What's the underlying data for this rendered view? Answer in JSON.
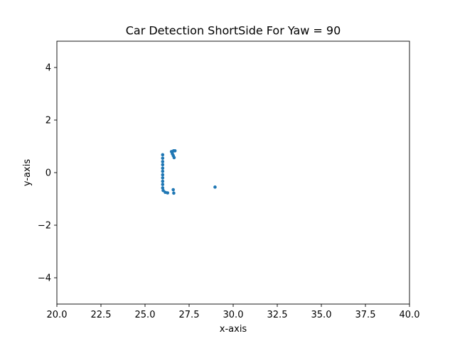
{
  "chart_data": {
    "type": "scatter",
    "title": "Car Detection ShortSide For Yaw = 90",
    "xlabel": "x-axis",
    "ylabel": "y-axis",
    "xlim": [
      20,
      40
    ],
    "ylim": [
      -5,
      5
    ],
    "xticks": [
      20.0,
      22.5,
      25.0,
      27.5,
      30.0,
      32.5,
      35.0,
      37.5,
      40.0
    ],
    "xtick_labels": [
      "20.0",
      "22.5",
      "25.0",
      "27.5",
      "30.0",
      "32.5",
      "35.0",
      "37.5",
      "40.0"
    ],
    "yticks": [
      -4,
      -2,
      0,
      2,
      4
    ],
    "ytick_labels": [
      "−4",
      "−2",
      "0",
      "2",
      "4"
    ],
    "grid": false,
    "series": [
      {
        "color": "#1f77b4",
        "points": [
          {
            "x": 26.0,
            "y": 0.68
          },
          {
            "x": 26.0,
            "y": 0.55
          },
          {
            "x": 26.0,
            "y": 0.42
          },
          {
            "x": 26.0,
            "y": 0.3
          },
          {
            "x": 26.0,
            "y": 0.17
          },
          {
            "x": 26.0,
            "y": 0.05
          },
          {
            "x": 26.0,
            "y": -0.08
          },
          {
            "x": 26.0,
            "y": -0.2
          },
          {
            "x": 26.0,
            "y": -0.33
          },
          {
            "x": 26.0,
            "y": -0.45
          },
          {
            "x": 26.0,
            "y": -0.58
          },
          {
            "x": 26.03,
            "y": -0.68
          },
          {
            "x": 26.15,
            "y": -0.75
          },
          {
            "x": 26.28,
            "y": -0.77
          },
          {
            "x": 26.5,
            "y": 0.8
          },
          {
            "x": 26.62,
            "y": 0.83
          },
          {
            "x": 26.7,
            "y": 0.83
          },
          {
            "x": 26.55,
            "y": 0.72
          },
          {
            "x": 26.6,
            "y": 0.65
          },
          {
            "x": 26.65,
            "y": 0.57
          },
          {
            "x": 26.6,
            "y": -0.65
          },
          {
            "x": 26.63,
            "y": -0.78
          },
          {
            "x": 28.97,
            "y": -0.55
          }
        ]
      }
    ]
  }
}
